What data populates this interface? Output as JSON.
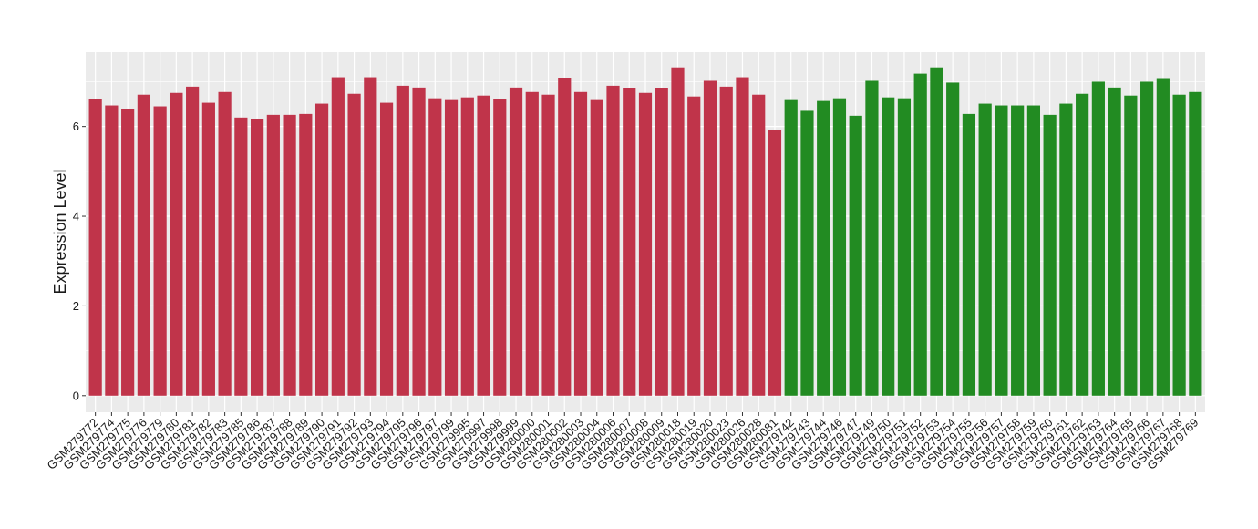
{
  "chart_data": {
    "type": "bar",
    "y_label": "Expression Level",
    "categories": [
      "GSM279772",
      "GSM279774",
      "GSM279775",
      "GSM279776",
      "GSM279779",
      "GSM279780",
      "GSM279781",
      "GSM279782",
      "GSM279783",
      "GSM279785",
      "GSM279786",
      "GSM279787",
      "GSM279788",
      "GSM279789",
      "GSM279790",
      "GSM279791",
      "GSM279792",
      "GSM279793",
      "GSM279794",
      "GSM279795",
      "GSM279796",
      "GSM279797",
      "GSM279799",
      "GSM279995",
      "GSM279997",
      "GSM279998",
      "GSM279999",
      "GSM280000",
      "GSM280001",
      "GSM280002",
      "GSM280003",
      "GSM280004",
      "GSM280006",
      "GSM280007",
      "GSM280008",
      "GSM280009",
      "GSM280018",
      "GSM280019",
      "GSM280020",
      "GSM280023",
      "GSM280026",
      "GSM280028",
      "GSM280081",
      "GSM279742",
      "GSM279743",
      "GSM279744",
      "GSM279746",
      "GSM279747",
      "GSM279749",
      "GSM279750",
      "GSM279751",
      "GSM279752",
      "GSM279753",
      "GSM279754",
      "GSM279755",
      "GSM279756",
      "GSM279757",
      "GSM279758",
      "GSM279759",
      "GSM279760",
      "GSM279761",
      "GSM279762",
      "GSM279763",
      "GSM279764",
      "GSM279765",
      "GSM279766",
      "GSM279767",
      "GSM279768",
      "GSM279769"
    ],
    "values": [
      6.61,
      6.47,
      6.39,
      6.71,
      6.45,
      6.75,
      6.89,
      6.53,
      6.77,
      6.2,
      6.16,
      6.26,
      6.26,
      6.28,
      6.51,
      7.1,
      6.73,
      7.1,
      6.53,
      6.91,
      6.87,
      6.63,
      6.59,
      6.65,
      6.69,
      6.61,
      6.87,
      6.77,
      6.71,
      7.08,
      6.77,
      6.59,
      6.91,
      6.85,
      6.75,
      6.85,
      7.3,
      6.67,
      7.02,
      6.89,
      7.1,
      6.71,
      5.92,
      6.59,
      6.35,
      6.57,
      6.63,
      6.24,
      7.02,
      6.65,
      6.63,
      7.18,
      7.3,
      6.98,
      6.28,
      6.51,
      6.47,
      6.47,
      6.47,
      6.26,
      6.51,
      6.73,
      7.0,
      6.87,
      6.69,
      7.0,
      7.06,
      6.71,
      6.77
    ],
    "colors": [
      "#c0344a",
      "#c0344a",
      "#c0344a",
      "#c0344a",
      "#c0344a",
      "#c0344a",
      "#c0344a",
      "#c0344a",
      "#c0344a",
      "#c0344a",
      "#c0344a",
      "#c0344a",
      "#c0344a",
      "#c0344a",
      "#c0344a",
      "#c0344a",
      "#c0344a",
      "#c0344a",
      "#c0344a",
      "#c0344a",
      "#c0344a",
      "#c0344a",
      "#c0344a",
      "#c0344a",
      "#c0344a",
      "#c0344a",
      "#c0344a",
      "#c0344a",
      "#c0344a",
      "#c0344a",
      "#c0344a",
      "#c0344a",
      "#c0344a",
      "#c0344a",
      "#c0344a",
      "#c0344a",
      "#c0344a",
      "#c0344a",
      "#c0344a",
      "#c0344a",
      "#c0344a",
      "#c0344a",
      "#c0344a",
      "#228b22",
      "#228b22",
      "#228b22",
      "#228b22",
      "#228b22",
      "#228b22",
      "#228b22",
      "#228b22",
      "#228b22",
      "#228b22",
      "#228b22",
      "#228b22",
      "#228b22",
      "#228b22",
      "#228b22",
      "#228b22",
      "#228b22",
      "#228b22",
      "#228b22",
      "#228b22",
      "#228b22",
      "#228b22",
      "#228b22",
      "#228b22",
      "#228b22",
      "#228b22"
    ],
    "ylim": [
      -0.37,
      7.66
    ],
    "yticks": [
      0,
      2,
      4,
      6
    ],
    "minor_yticks": [
      1,
      3,
      5,
      7
    ],
    "grid": true
  }
}
